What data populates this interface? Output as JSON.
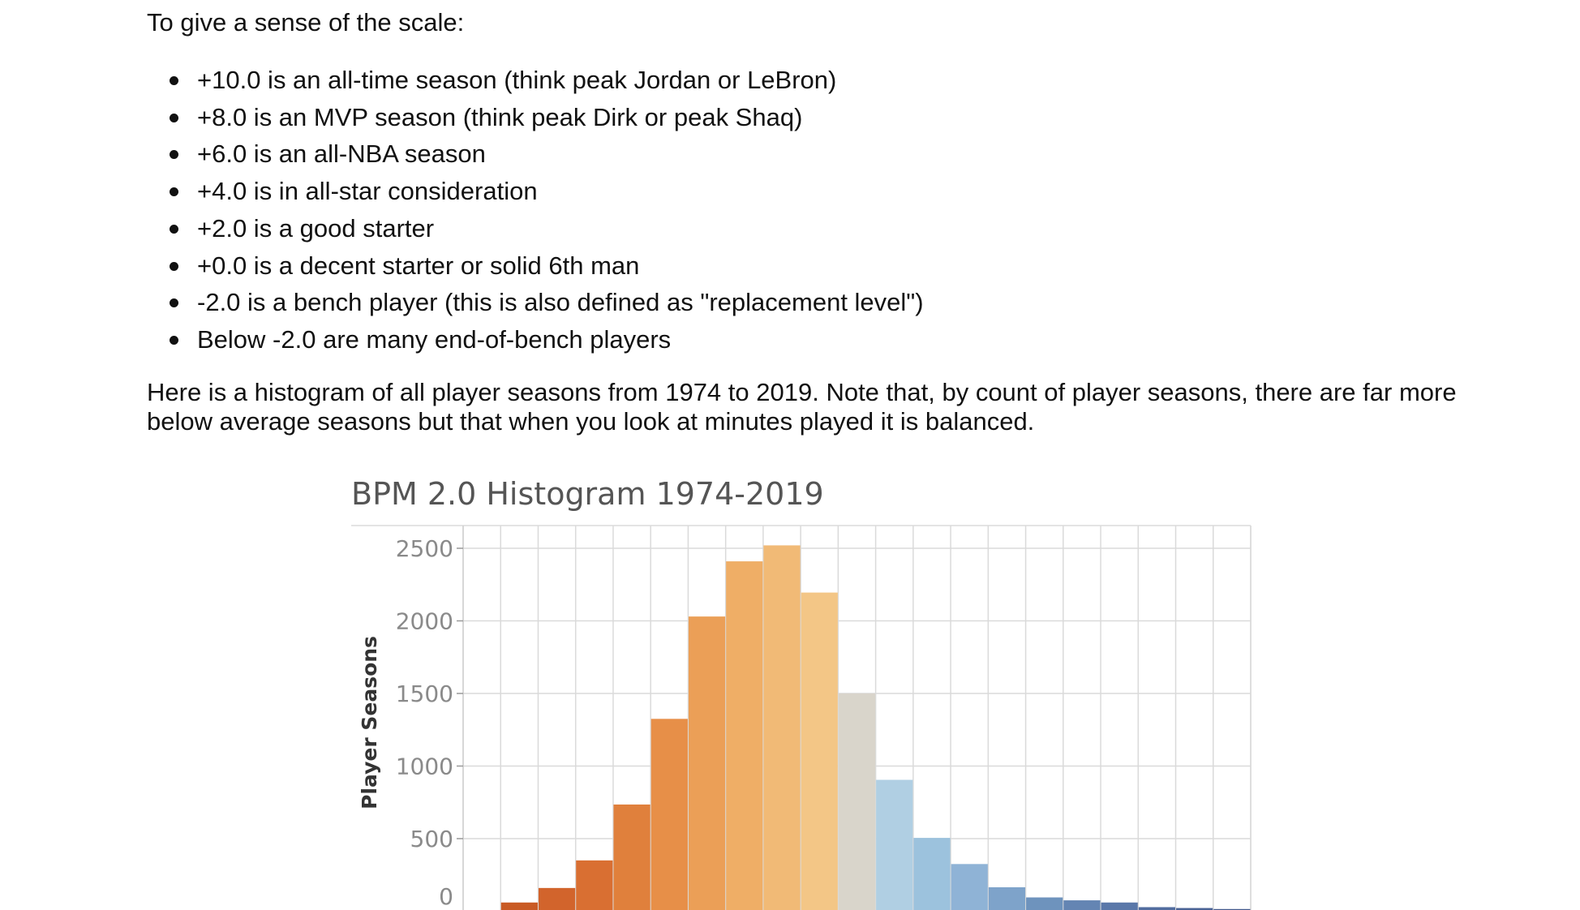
{
  "text": {
    "intro": "To give a sense of the scale:",
    "bullets": [
      "+10.0 is an all-time season (think peak Jordan or LeBron)",
      "+8.0 is an MVP season (think peak Dirk or peak Shaq)",
      "+6.0 is an all-NBA season",
      "+4.0 is in all-star consideration",
      "+2.0 is a good starter",
      "+0.0 is a decent starter or solid 6th man",
      "-2.0 is a bench player (this is also defined as \"replacement level\")",
      "Below -2.0 are many end-of-bench players"
    ],
    "paragraph": "Here is a histogram of all player seasons from 1974 to 2019. Note that, by count of player seasons, there are far more below average seasons but that when you look at minutes played it is balanced."
  },
  "chart_data": {
    "type": "bar",
    "title": "BPM 2.0 Histogram 1974-2019",
    "xlabel": "",
    "ylabel": "Player Seasons",
    "ylim": [
      0,
      2650
    ],
    "yticks": [
      0,
      500,
      1000,
      1500,
      2000,
      2500
    ],
    "grid": true,
    "legend": "none",
    "values": [
      8,
      60,
      160,
      350,
      735,
      1325,
      2030,
      2410,
      2520,
      2195,
      1500,
      905,
      505,
      325,
      165,
      95,
      75,
      60,
      28,
      22,
      15
    ],
    "colors": [
      "#c1501f",
      "#c95a24",
      "#d2642c",
      "#d96f32",
      "#e0803c",
      "#e78f48",
      "#eb9f57",
      "#efae66",
      "#f1ba76",
      "#f3c686",
      "#d9d5cb",
      "#b0cfe3",
      "#9cc2dd",
      "#8fb3d6",
      "#7ea3ca",
      "#6e93bd",
      "#6485b3",
      "#5a78a9",
      "#526d9f",
      "#4a6396",
      "#435b8d"
    ]
  }
}
